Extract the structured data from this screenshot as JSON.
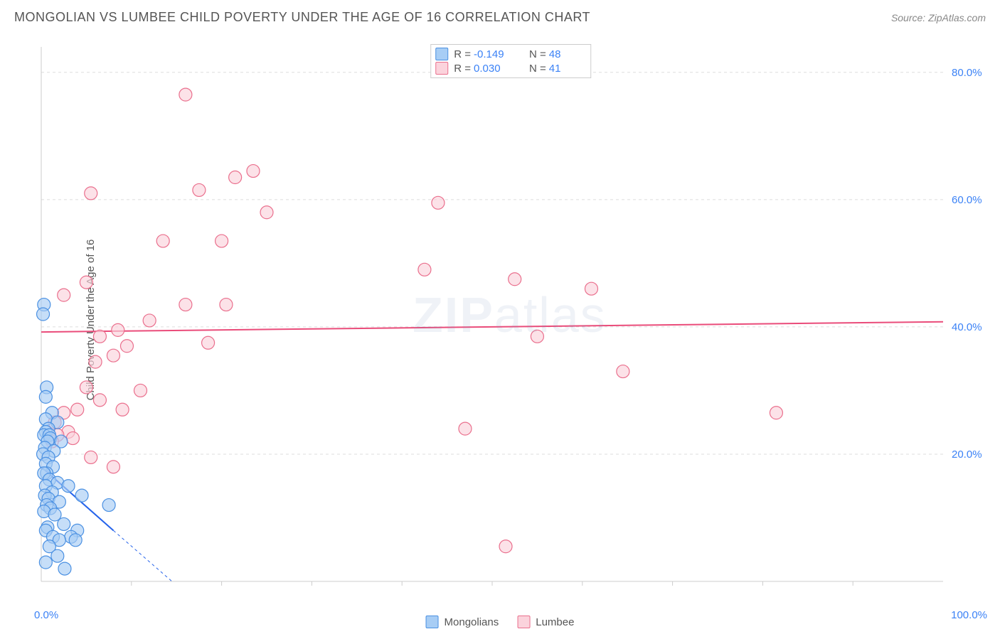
{
  "header": {
    "title": "MONGOLIAN VS LUMBEE CHILD POVERTY UNDER THE AGE OF 16 CORRELATION CHART",
    "source_label": "Source:",
    "source_value": "ZipAtlas.com"
  },
  "chart": {
    "type": "scatter",
    "ylabel": "Child Poverty Under the Age of 16",
    "xlim": [
      0,
      100
    ],
    "ylim": [
      0,
      84
    ],
    "xtick_labels": [
      "0.0%",
      "100.0%"
    ],
    "ytick_values": [
      20,
      40,
      60,
      80
    ],
    "ytick_labels": [
      "20.0%",
      "40.0%",
      "60.0%",
      "80.0%"
    ],
    "xtick_minor": [
      10,
      20,
      30,
      40,
      50,
      60,
      70,
      80,
      90
    ],
    "grid_dash": "4,4",
    "background_color": "#ffffff",
    "grid_color": "#dddddd",
    "axis_color": "#cccccc",
    "axis_label_color": "#3b82f6",
    "marker_radius": 9,
    "marker_stroke_width": 1.2,
    "trend_line_width": 2,
    "watermark": "ZIPatlas",
    "series": {
      "mongolians": {
        "label": "Mongolians",
        "R": "-0.149",
        "N": "48",
        "fill": "#a7cdf5",
        "stroke": "#4a90e2",
        "trend_color": "#2563eb",
        "trend": {
          "x1": 0,
          "y1": 18,
          "x2": 8,
          "y2": 8
        },
        "trend_ext": {
          "x1": 8,
          "y1": 8,
          "x2": 14.5,
          "y2": 0
        },
        "points": [
          [
            0.3,
            43.5
          ],
          [
            0.2,
            42.0
          ],
          [
            0.6,
            30.5
          ],
          [
            0.5,
            29.0
          ],
          [
            1.2,
            26.5
          ],
          [
            0.5,
            25.5
          ],
          [
            1.8,
            25.0
          ],
          [
            0.8,
            24.0
          ],
          [
            0.5,
            23.5
          ],
          [
            0.3,
            23.0
          ],
          [
            0.9,
            23.0
          ],
          [
            1.0,
            22.5
          ],
          [
            0.7,
            22.0
          ],
          [
            2.2,
            22.0
          ],
          [
            0.4,
            21.0
          ],
          [
            1.4,
            20.5
          ],
          [
            0.2,
            20.0
          ],
          [
            0.8,
            19.5
          ],
          [
            0.5,
            18.5
          ],
          [
            1.3,
            18.0
          ],
          [
            0.6,
            17.0
          ],
          [
            0.3,
            17.0
          ],
          [
            0.9,
            16.0
          ],
          [
            1.8,
            15.5
          ],
          [
            0.5,
            15.0
          ],
          [
            3.0,
            15.0
          ],
          [
            1.2,
            14.0
          ],
          [
            0.4,
            13.5
          ],
          [
            4.5,
            13.5
          ],
          [
            0.8,
            13.0
          ],
          [
            2.0,
            12.5
          ],
          [
            0.6,
            12.0
          ],
          [
            7.5,
            12.0
          ],
          [
            1.0,
            11.5
          ],
          [
            0.3,
            11.0
          ],
          [
            1.5,
            10.5
          ],
          [
            2.5,
            9.0
          ],
          [
            0.7,
            8.5
          ],
          [
            4.0,
            8.0
          ],
          [
            0.5,
            8.0
          ],
          [
            1.3,
            7.0
          ],
          [
            3.3,
            7.0
          ],
          [
            2.0,
            6.5
          ],
          [
            3.8,
            6.5
          ],
          [
            0.9,
            5.5
          ],
          [
            1.8,
            4.0
          ],
          [
            0.5,
            3.0
          ],
          [
            2.6,
            2.0
          ]
        ]
      },
      "lumbee": {
        "label": "Lumbee",
        "R": "0.030",
        "N": "41",
        "fill": "#fbd3dc",
        "stroke": "#ea6f8d",
        "trend_color": "#ea4c7a",
        "trend": {
          "x1": 0,
          "y1": 39.2,
          "x2": 100,
          "y2": 40.8
        },
        "points": [
          [
            16.0,
            76.5
          ],
          [
            23.5,
            64.5
          ],
          [
            21.5,
            63.5
          ],
          [
            17.5,
            61.5
          ],
          [
            5.5,
            61.0
          ],
          [
            44.0,
            59.5
          ],
          [
            25.0,
            58.0
          ],
          [
            13.5,
            53.5
          ],
          [
            20.0,
            53.5
          ],
          [
            42.5,
            49.0
          ],
          [
            52.5,
            47.5
          ],
          [
            5.0,
            47.0
          ],
          [
            61.0,
            46.0
          ],
          [
            2.5,
            45.0
          ],
          [
            16.0,
            43.5
          ],
          [
            20.5,
            43.5
          ],
          [
            12.0,
            41.0
          ],
          [
            8.5,
            39.5
          ],
          [
            6.5,
            38.5
          ],
          [
            18.5,
            37.5
          ],
          [
            9.5,
            37.0
          ],
          [
            55.0,
            38.5
          ],
          [
            8.0,
            35.5
          ],
          [
            6.0,
            34.5
          ],
          [
            64.5,
            33.0
          ],
          [
            5.0,
            30.5
          ],
          [
            11.0,
            30.0
          ],
          [
            6.5,
            28.5
          ],
          [
            81.5,
            26.5
          ],
          [
            4.0,
            27.0
          ],
          [
            9.0,
            27.0
          ],
          [
            3.0,
            23.5
          ],
          [
            47.0,
            24.0
          ],
          [
            3.5,
            22.5
          ],
          [
            5.5,
            19.5
          ],
          [
            8.0,
            18.0
          ],
          [
            2.5,
            26.5
          ],
          [
            1.5,
            25.0
          ],
          [
            1.8,
            23.0
          ],
          [
            1.2,
            22.0
          ],
          [
            51.5,
            5.5
          ]
        ]
      }
    }
  },
  "legend_bottom": {
    "items": [
      "Mongolians",
      "Lumbee"
    ]
  }
}
